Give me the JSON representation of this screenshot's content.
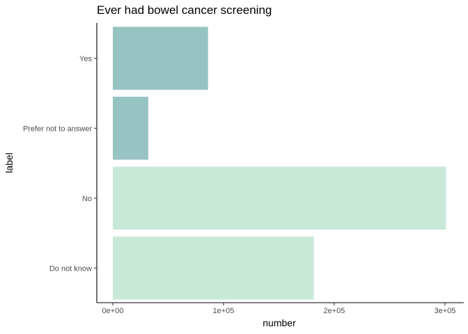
{
  "chart_data": {
    "type": "bar",
    "orientation": "horizontal",
    "title": "Ever had bowel cancer screening",
    "xlabel": "number",
    "ylabel": "label",
    "categories": [
      "Do not know",
      "No",
      "Prefer not to answer",
      "Yes"
    ],
    "values": [
      181500,
      301000,
      32000,
      86000
    ],
    "bar_colors": [
      "#c8e9d8",
      "#c8e9d8",
      "#97c4c2",
      "#97c4c2"
    ],
    "xlim": [
      0,
      310000
    ],
    "x_ticks": [
      {
        "value": 0,
        "label": "0e+00"
      },
      {
        "value": 100000,
        "label": "1e+05"
      },
      {
        "value": 200000,
        "label": "2e+05"
      },
      {
        "value": 300000,
        "label": "3e+05"
      }
    ],
    "grid": false,
    "legend": "none"
  }
}
